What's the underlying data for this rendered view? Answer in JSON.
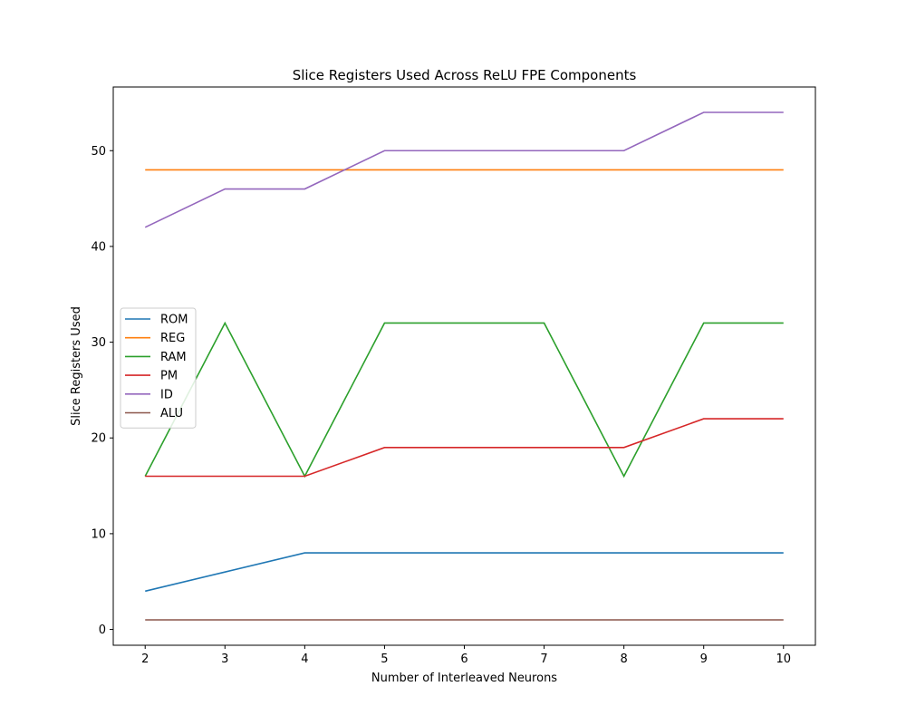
{
  "chart_data": {
    "type": "line",
    "title": "Slice Registers Used Across ReLU FPE Components",
    "xlabel": "Number of Interleaved Neurons",
    "ylabel": "Slice Registers Used",
    "x": [
      2,
      3,
      4,
      5,
      6,
      7,
      8,
      9,
      10
    ],
    "xlim": [
      1.6,
      10.4
    ],
    "ylim": [
      -1.65,
      56.65
    ],
    "xticks": [
      2,
      3,
      4,
      5,
      6,
      7,
      8,
      9,
      10
    ],
    "yticks": [
      0,
      10,
      20,
      30,
      40,
      50
    ],
    "grid": false,
    "legend_position": "center-left",
    "series": [
      {
        "name": "ROM",
        "color": "#1f77b4",
        "values": [
          4,
          6,
          8,
          8,
          8,
          8,
          8,
          8,
          8
        ]
      },
      {
        "name": "REG",
        "color": "#ff7f0e",
        "values": [
          48,
          48,
          48,
          48,
          48,
          48,
          48,
          48,
          48
        ]
      },
      {
        "name": "RAM",
        "color": "#2ca02c",
        "values": [
          16,
          32,
          16,
          32,
          32,
          32,
          16,
          32,
          32
        ]
      },
      {
        "name": "PM",
        "color": "#d62728",
        "values": [
          16,
          16,
          16,
          19,
          19,
          19,
          19,
          22,
          22
        ]
      },
      {
        "name": "ID",
        "color": "#9467bd",
        "values": [
          42,
          46,
          46,
          50,
          50,
          50,
          50,
          54,
          54
        ]
      },
      {
        "name": "ALU",
        "color": "#8c564b",
        "values": [
          1,
          1,
          1,
          1,
          1,
          1,
          1,
          1,
          1
        ]
      }
    ]
  }
}
